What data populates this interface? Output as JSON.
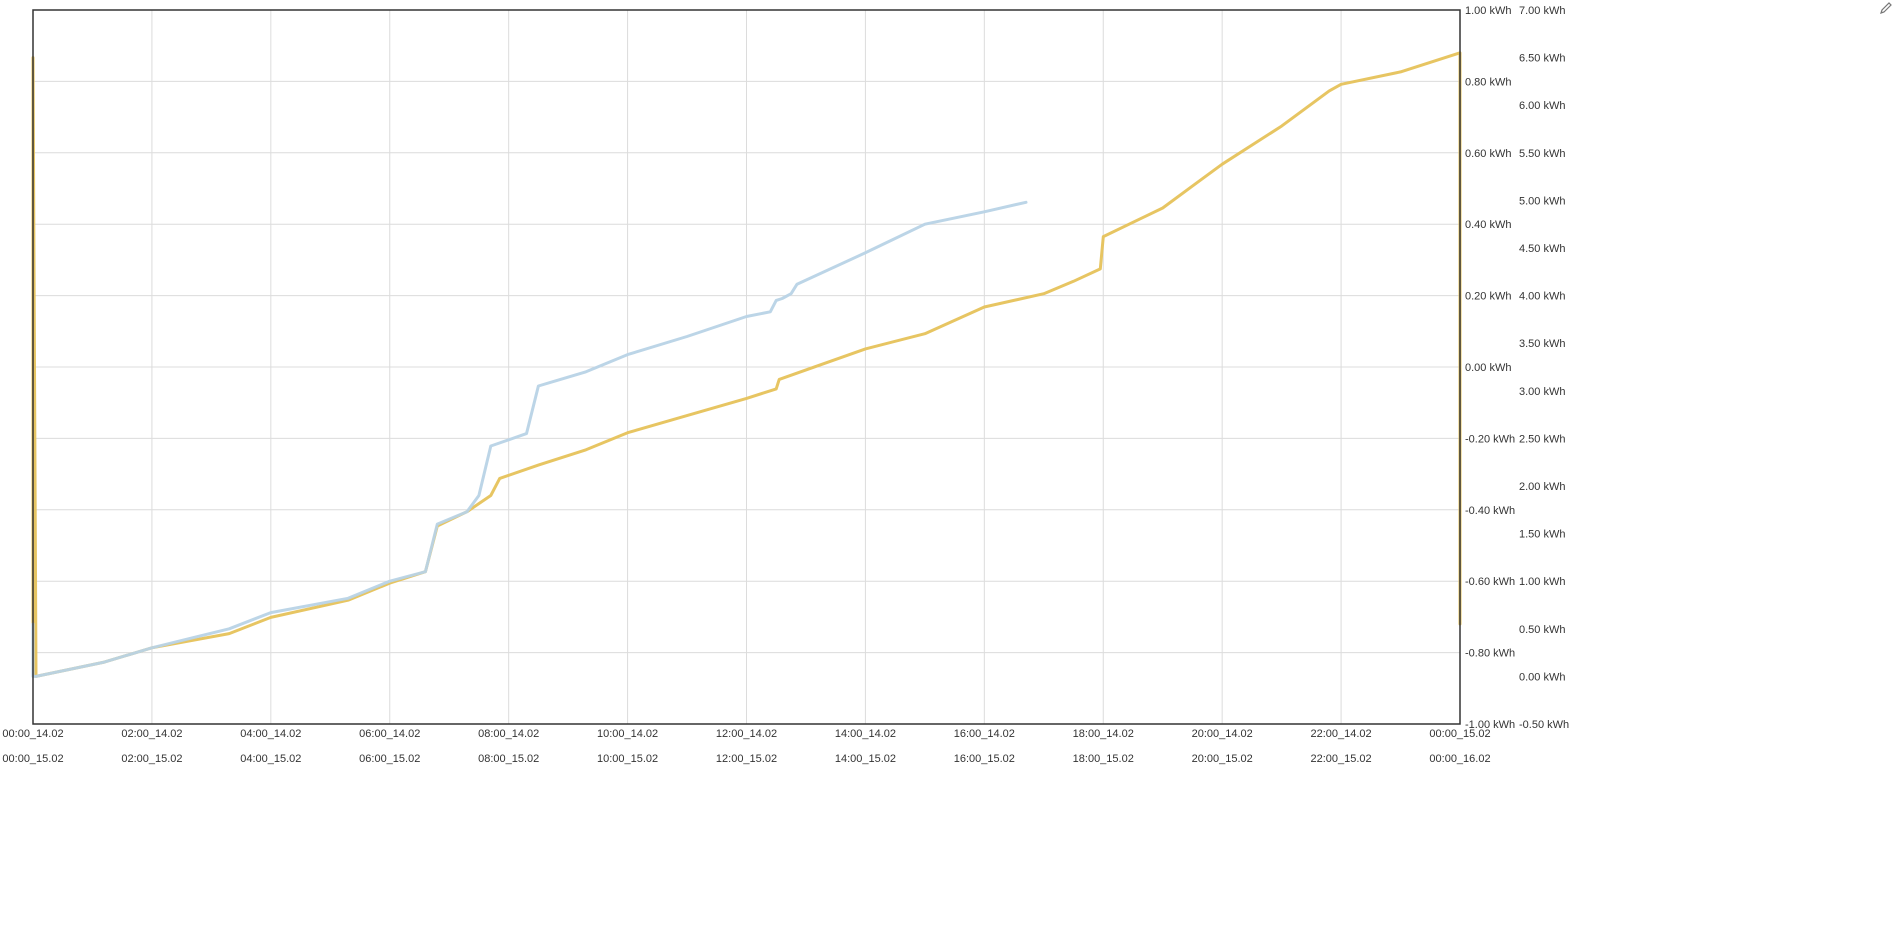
{
  "chart_data": {
    "type": "line",
    "title": "",
    "xlabel": "",
    "ylabel": "",
    "x_ticks_top": [
      "00:00_14.02",
      "02:00_14.02",
      "04:00_14.02",
      "06:00_14.02",
      "08:00_14.02",
      "10:00_14.02",
      "12:00_14.02",
      "14:00_14.02",
      "16:00_14.02",
      "18:00_14.02",
      "20:00_14.02",
      "22:00_14.02",
      "00:00_15.02"
    ],
    "x_ticks_bottom": [
      "00:00_15.02",
      "02:00_15.02",
      "04:00_15.02",
      "06:00_15.02",
      "08:00_15.02",
      "10:00_15.02",
      "12:00_15.02",
      "14:00_15.02",
      "16:00_15.02",
      "18:00_15.02",
      "20:00_15.02",
      "22:00_15.02",
      "00:00_16.02"
    ],
    "y_left_ticks": [
      "1.00 kWh",
      "0.80 kWh",
      "0.60 kWh",
      "0.40 kWh",
      "0.20 kWh",
      "0.00 kWh",
      "-0.20 kWh",
      "-0.40 kWh",
      "-0.60 kWh",
      "-0.80 kWh",
      "-1.00 kWh"
    ],
    "y_right_ticks": [
      "7.00 kWh",
      "6.50 kWh",
      "6.00 kWh",
      "5.50 kWh",
      "5.00 kWh",
      "4.50 kWh",
      "4.00 kWh",
      "3.50 kWh",
      "3.00 kWh",
      "2.50 kWh",
      "2.00 kWh",
      "1.50 kWh",
      "1.00 kWh",
      "0.50 kWh",
      "0.00 kWh",
      "-0.50 kWh"
    ],
    "y_left_range": [
      -1.0,
      1.0
    ],
    "y_right_range": [
      -0.5,
      7.0
    ],
    "grid": true,
    "legend": "none",
    "series": [
      {
        "color": "#e6c25a",
        "axis": "right",
        "x_hours": [
          0,
          0,
          0.05,
          1.2,
          2.0,
          3.3,
          4.0,
          5.3,
          6.0,
          6.6,
          6.8,
          7.3,
          7.7,
          7.85,
          8.5,
          9.3,
          10.0,
          11.0,
          12.0,
          12.5,
          12.55,
          13.0,
          14.0,
          15.0,
          16.0,
          17.0,
          17.5,
          17.95,
          18.0,
          19.0,
          19.5,
          20.0,
          21.0,
          21.8,
          22.0,
          23.0,
          24.0,
          24.0,
          24.0
        ],
        "values": [
          0.55,
          6.5,
          0.0,
          0.15,
          0.3,
          0.45,
          0.62,
          0.8,
          0.98,
          1.1,
          1.58,
          1.73,
          1.9,
          2.08,
          2.22,
          2.38,
          2.56,
          2.74,
          2.92,
          3.02,
          3.12,
          3.22,
          3.44,
          3.6,
          3.88,
          4.02,
          4.15,
          4.28,
          4.62,
          4.92,
          5.15,
          5.38,
          5.78,
          6.15,
          6.22,
          6.35,
          6.55,
          6.5,
          0.55
        ]
      },
      {
        "color": "#b8d3e6",
        "axis": "right",
        "x_hours": [
          0,
          0,
          0.05,
          1.2,
          2.0,
          3.3,
          4.0,
          5.3,
          6.0,
          6.6,
          6.8,
          7.3,
          7.5,
          7.7,
          8.3,
          8.5,
          9.3,
          10.0,
          11.0,
          12.0,
          12.4,
          12.5,
          12.6,
          12.75,
          12.85,
          14.0,
          15.0,
          16.0,
          16.7
        ],
        "values": [
          0.55,
          0.0,
          0.0,
          0.15,
          0.3,
          0.5,
          0.67,
          0.82,
          1.0,
          1.1,
          1.6,
          1.73,
          1.9,
          2.42,
          2.55,
          3.05,
          3.2,
          3.38,
          3.57,
          3.78,
          3.83,
          3.95,
          3.97,
          4.02,
          4.12,
          4.45,
          4.75,
          4.88,
          4.98
        ]
      }
    ]
  }
}
